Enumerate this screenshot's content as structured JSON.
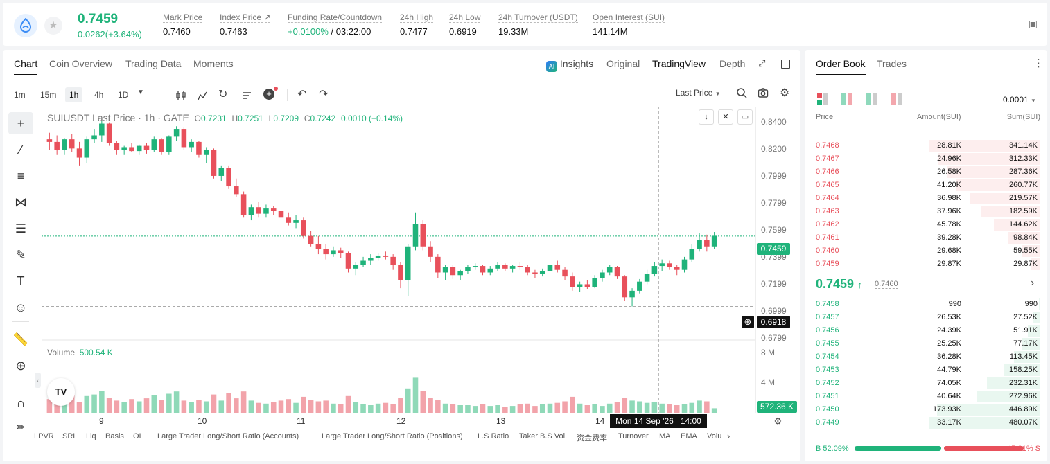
{
  "header": {
    "last_price": "0.7459",
    "change": "0.0262(+3.64%)",
    "stats": [
      {
        "label": "Mark Price",
        "value": "0.7460"
      },
      {
        "label": "Index Price ↗",
        "value": "0.7463"
      },
      {
        "label": "Funding Rate/Countdown",
        "value_green": "+0.0100%",
        "value": " / 03:22:00"
      },
      {
        "label": "24h High",
        "value": "0.7477"
      },
      {
        "label": "24h Low",
        "value": "0.6919"
      },
      {
        "label": "24h Turnover (USDT)",
        "value": "19.33M"
      },
      {
        "label": "Open Interest (SUI)",
        "value": "141.14M"
      }
    ]
  },
  "tabs": [
    "Chart",
    "Coin Overview",
    "Trading Data",
    "Moments"
  ],
  "view_tabs": {
    "insights": "Insights",
    "original": "Original",
    "tradingview": "TradingView",
    "depth": "Depth"
  },
  "timeframes": [
    "1m",
    "15m",
    "1h",
    "4h",
    "1D"
  ],
  "price_type": "Last Price",
  "legend": {
    "title": "SUIUSDT Last Price · 1h · GATE",
    "o_label": "O",
    "o": "0.7231",
    "h_label": "H",
    "h": "0.7251",
    "l_label": "L",
    "l": "0.7209",
    "c_label": "C",
    "c": "0.7242",
    "chg": "0.0010 (+0.14%)"
  },
  "volume_legend": {
    "label": "Volume",
    "value": "500.54 K"
  },
  "price_axis": [
    "0.8400",
    "0.8200",
    "0.7999",
    "0.7799",
    "0.7599",
    "0.7399",
    "0.7199",
    "0.6999",
    "0.6799"
  ],
  "volume_axis": [
    "8 M",
    "4 M"
  ],
  "time_axis": [
    "9",
    "10",
    "11",
    "12",
    "13",
    "14"
  ],
  "current_price_label": "0.7459",
  "crosshair_price_label": "0.6918",
  "crosshair_time_label": "Mon 14 Sep '26   14:00",
  "volume_current_label": "572.36 K",
  "indicators": [
    "LPVR",
    "SRL",
    "Liq",
    "Basis",
    "OI",
    "Large Trader Long/Short Ratio (Accounts)",
    "Large Trader Long/Short Ratio (Positions)",
    "L.S Ratio",
    "Taker B.S Vol.",
    "资金费率",
    "Turnover",
    "MA",
    "EMA",
    "Volu"
  ],
  "colors": {
    "up": "#1fb37a",
    "down": "#e8505b"
  },
  "chart_data": {
    "type": "candlestick",
    "ylim": [
      0.67,
      0.845
    ],
    "candles": [
      [
        0.82,
        0.825,
        0.812,
        0.818
      ],
      [
        0.818,
        0.823,
        0.808,
        0.812
      ],
      [
        0.812,
        0.821,
        0.808,
        0.82
      ],
      [
        0.82,
        0.824,
        0.81,
        0.813
      ],
      [
        0.813,
        0.818,
        0.8,
        0.806
      ],
      [
        0.806,
        0.822,
        0.802,
        0.82
      ],
      [
        0.82,
        0.828,
        0.817,
        0.823
      ],
      [
        0.823,
        0.834,
        0.818,
        0.832
      ],
      [
        0.832,
        0.833,
        0.815,
        0.817
      ],
      [
        0.817,
        0.819,
        0.808,
        0.812
      ],
      [
        0.812,
        0.815,
        0.808,
        0.814
      ],
      [
        0.814,
        0.817,
        0.81,
        0.811
      ],
      [
        0.811,
        0.816,
        0.808,
        0.815
      ],
      [
        0.815,
        0.817,
        0.809,
        0.812
      ],
      [
        0.812,
        0.822,
        0.81,
        0.82
      ],
      [
        0.82,
        0.821,
        0.808,
        0.81
      ],
      [
        0.81,
        0.823,
        0.808,
        0.822
      ],
      [
        0.822,
        0.83,
        0.819,
        0.828
      ],
      [
        0.828,
        0.829,
        0.812,
        0.814
      ],
      [
        0.814,
        0.82,
        0.81,
        0.818
      ],
      [
        0.818,
        0.819,
        0.806,
        0.808
      ],
      [
        0.808,
        0.814,
        0.802,
        0.812
      ],
      [
        0.812,
        0.813,
        0.79,
        0.792
      ],
      [
        0.792,
        0.8,
        0.788,
        0.798
      ],
      [
        0.798,
        0.8,
        0.782,
        0.784
      ],
      [
        0.784,
        0.79,
        0.776,
        0.778
      ],
      [
        0.778,
        0.78,
        0.76,
        0.762
      ],
      [
        0.762,
        0.77,
        0.758,
        0.768
      ],
      [
        0.768,
        0.772,
        0.76,
        0.763
      ],
      [
        0.763,
        0.77,
        0.76,
        0.767
      ],
      [
        0.767,
        0.769,
        0.762,
        0.765
      ],
      [
        0.765,
        0.768,
        0.758,
        0.76
      ],
      [
        0.76,
        0.764,
        0.754,
        0.756
      ],
      [
        0.756,
        0.762,
        0.752,
        0.758
      ],
      [
        0.758,
        0.76,
        0.744,
        0.746
      ],
      [
        0.746,
        0.75,
        0.738,
        0.74
      ],
      [
        0.74,
        0.746,
        0.732,
        0.736
      ],
      [
        0.736,
        0.74,
        0.728,
        0.732
      ],
      [
        0.732,
        0.738,
        0.73,
        0.735
      ],
      [
        0.735,
        0.737,
        0.729,
        0.733
      ],
      [
        0.733,
        0.734,
        0.718,
        0.721
      ],
      [
        0.721,
        0.726,
        0.716,
        0.724
      ],
      [
        0.724,
        0.73,
        0.722,
        0.727
      ],
      [
        0.727,
        0.732,
        0.724,
        0.729
      ],
      [
        0.729,
        0.733,
        0.727,
        0.731
      ],
      [
        0.731,
        0.734,
        0.728,
        0.73
      ],
      [
        0.73,
        0.732,
        0.72,
        0.724
      ],
      [
        0.724,
        0.726,
        0.706,
        0.712
      ],
      [
        0.712,
        0.74,
        0.7,
        0.738
      ],
      [
        0.738,
        0.764,
        0.735,
        0.755
      ],
      [
        0.755,
        0.758,
        0.735,
        0.738
      ],
      [
        0.738,
        0.742,
        0.726,
        0.73
      ],
      [
        0.73,
        0.732,
        0.714,
        0.718
      ],
      [
        0.718,
        0.724,
        0.712,
        0.722
      ],
      [
        0.722,
        0.724,
        0.713,
        0.716
      ],
      [
        0.716,
        0.72,
        0.712,
        0.719
      ],
      [
        0.719,
        0.724,
        0.717,
        0.722
      ],
      [
        0.722,
        0.725,
        0.72,
        0.723
      ],
      [
        0.723,
        0.724,
        0.716,
        0.718
      ],
      [
        0.718,
        0.723,
        0.716,
        0.721
      ],
      [
        0.721,
        0.726,
        0.719,
        0.724
      ],
      [
        0.724,
        0.725,
        0.719,
        0.721
      ],
      [
        0.721,
        0.724,
        0.718,
        0.723
      ],
      [
        0.723,
        0.726,
        0.72,
        0.722
      ],
      [
        0.722,
        0.724,
        0.716,
        0.718
      ],
      [
        0.718,
        0.72,
        0.714,
        0.717
      ],
      [
        0.717,
        0.721,
        0.715,
        0.719
      ],
      [
        0.719,
        0.726,
        0.717,
        0.724
      ],
      [
        0.724,
        0.727,
        0.718,
        0.72
      ],
      [
        0.72,
        0.722,
        0.712,
        0.715
      ],
      [
        0.715,
        0.718,
        0.704,
        0.707
      ],
      [
        0.707,
        0.711,
        0.703,
        0.709
      ],
      [
        0.709,
        0.712,
        0.705,
        0.707
      ],
      [
        0.707,
        0.716,
        0.706,
        0.714
      ],
      [
        0.714,
        0.72,
        0.711,
        0.718
      ],
      [
        0.718,
        0.724,
        0.716,
        0.722
      ],
      [
        0.722,
        0.723,
        0.713,
        0.715
      ],
      [
        0.715,
        0.716,
        0.696,
        0.699
      ],
      [
        0.699,
        0.706,
        0.692,
        0.704
      ],
      [
        0.704,
        0.713,
        0.702,
        0.711
      ],
      [
        0.711,
        0.72,
        0.709,
        0.717
      ],
      [
        0.717,
        0.726,
        0.715,
        0.723
      ],
      [
        0.723,
        0.728,
        0.719,
        0.725
      ],
      [
        0.725,
        0.727,
        0.72,
        0.722
      ],
      [
        0.722,
        0.724,
        0.716,
        0.72
      ],
      [
        0.72,
        0.73,
        0.718,
        0.728
      ],
      [
        0.728,
        0.74,
        0.726,
        0.736
      ],
      [
        0.736,
        0.748,
        0.734,
        0.743
      ],
      [
        0.743,
        0.747,
        0.734,
        0.738
      ],
      [
        0.738,
        0.749,
        0.736,
        0.746
      ]
    ],
    "volume": [
      1.8,
      2.0,
      1.5,
      2.6,
      1.4,
      2.2,
      2.4,
      2.9,
      2.0,
      1.6,
      1.4,
      1.8,
      1.5,
      1.9,
      2.3,
      1.7,
      2.5,
      2.8,
      1.6,
      1.4,
      1.7,
      1.5,
      2.4,
      1.6,
      2.6,
      1.9,
      2.8,
      1.6,
      1.3,
      1.2,
      1.4,
      1.6,
      1.8,
      1.3,
      2.1,
      1.7,
      1.5,
      1.6,
      1.2,
      1.1,
      2.2,
      1.4,
      1.1,
      1.0,
      1.2,
      1.3,
      1.1,
      2.0,
      3.2,
      4.6,
      2.9,
      2.0,
      1.7,
      1.2,
      1.1,
      1.0,
      1.0,
      0.9,
      1.1,
      0.9,
      1.0,
      0.8,
      0.9,
      1.1,
      1.2,
      0.9,
      1.1,
      1.2,
      1.3,
      1.5,
      2.1,
      1.2,
      1.0,
      1.1,
      0.9,
      1.2,
      1.4,
      2.0,
      1.6,
      1.5,
      1.3,
      1.4,
      1.2,
      1.1,
      1.0,
      1.1,
      1.3,
      1.6,
      1.5,
      0.6
    ]
  },
  "orderbook": {
    "tabs": [
      "Order Book",
      "Trades"
    ],
    "precision": "0.0001",
    "headers": {
      "price": "Price",
      "amount": "Amount(SUI)",
      "sum": "Sum(SUI)"
    },
    "asks": [
      {
        "p": "0.7468",
        "a": "28.81K",
        "s": "341.14K",
        "d": 1.0
      },
      {
        "p": "0.7467",
        "a": "24.96K",
        "s": "312.33K",
        "d": 0.92
      },
      {
        "p": "0.7466",
        "a": "26.58K",
        "s": "287.36K",
        "d": 0.84
      },
      {
        "p": "0.7465",
        "a": "41.20K",
        "s": "260.77K",
        "d": 0.76
      },
      {
        "p": "0.7464",
        "a": "36.98K",
        "s": "219.57K",
        "d": 0.64
      },
      {
        "p": "0.7463",
        "a": "37.96K",
        "s": "182.59K",
        "d": 0.54
      },
      {
        "p": "0.7462",
        "a": "45.78K",
        "s": "144.62K",
        "d": 0.42
      },
      {
        "p": "0.7461",
        "a": "39.28K",
        "s": "98.84K",
        "d": 0.29
      },
      {
        "p": "0.7460",
        "a": "29.68K",
        "s": "59.55K",
        "d": 0.17
      },
      {
        "p": "0.7459",
        "a": "29.87K",
        "s": "29.87K",
        "d": 0.09
      }
    ],
    "mid_price": "0.7459",
    "mark": "0.7460",
    "bids": [
      {
        "p": "0.7458",
        "a": "990",
        "s": "990",
        "d": 0.0
      },
      {
        "p": "0.7457",
        "a": "26.53K",
        "s": "27.52K",
        "d": 0.06
      },
      {
        "p": "0.7456",
        "a": "24.39K",
        "s": "51.91K",
        "d": 0.11
      },
      {
        "p": "0.7455",
        "a": "25.25K",
        "s": "77.17K",
        "d": 0.16
      },
      {
        "p": "0.7454",
        "a": "36.28K",
        "s": "113.45K",
        "d": 0.24
      },
      {
        "p": "0.7453",
        "a": "44.79K",
        "s": "158.25K",
        "d": 0.33
      },
      {
        "p": "0.7452",
        "a": "74.05K",
        "s": "232.31K",
        "d": 0.48
      },
      {
        "p": "0.7451",
        "a": "40.64K",
        "s": "272.96K",
        "d": 0.57
      },
      {
        "p": "0.7450",
        "a": "173.93K",
        "s": "446.89K",
        "d": 0.93
      },
      {
        "p": "0.7449",
        "a": "33.17K",
        "s": "480.07K",
        "d": 1.0
      }
    ],
    "buy_ratio": "B 52.09%",
    "sell_ratio": "47.91% S",
    "buy_fraction": 0.5209
  }
}
